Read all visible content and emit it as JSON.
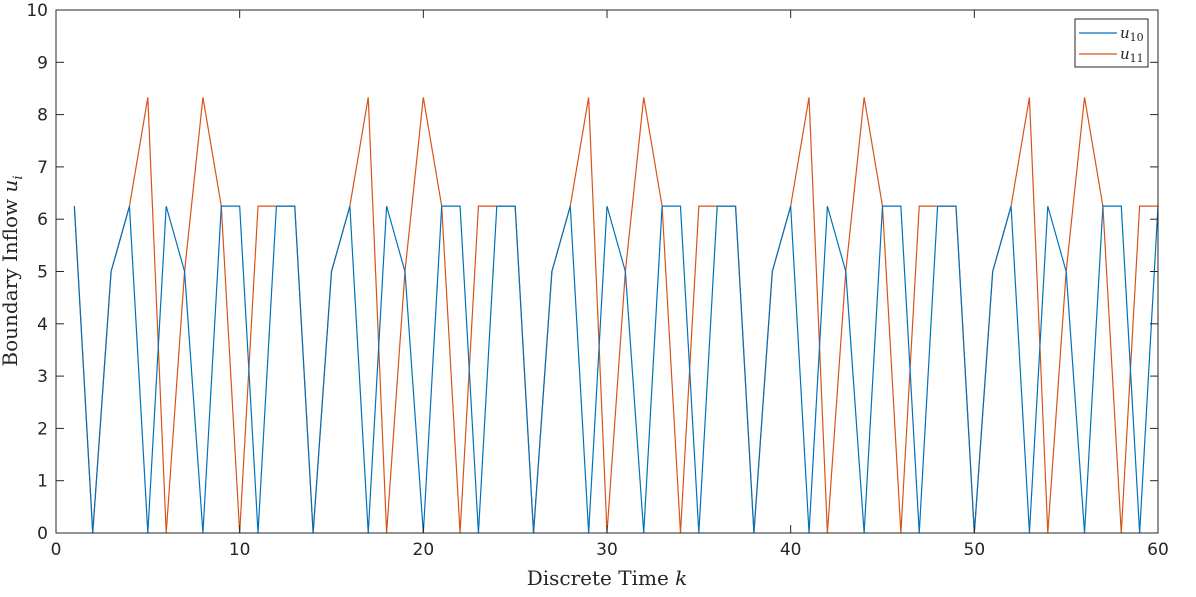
{
  "chart_data": {
    "type": "line",
    "title": "",
    "xlabel": "Discrete Time",
    "xlabel_var": "k",
    "ylabel": "Boundary Inflow",
    "ylabel_var": "u",
    "ylabel_sub": "i",
    "xlim": [
      0,
      60
    ],
    "ylim": [
      0,
      10
    ],
    "xticks": [
      0,
      10,
      20,
      30,
      40,
      50,
      60
    ],
    "yticks": [
      0,
      1,
      2,
      3,
      4,
      5,
      6,
      7,
      8,
      9,
      10
    ],
    "grid": false,
    "legend_position": "top-right",
    "x": [
      1,
      2,
      3,
      4,
      5,
      6,
      7,
      8,
      9,
      10,
      11,
      12,
      13,
      14,
      15,
      16,
      17,
      18,
      19,
      20,
      21,
      22,
      23,
      24,
      25,
      26,
      27,
      28,
      29,
      30,
      31,
      32,
      33,
      34,
      35,
      36,
      37,
      38,
      39,
      40,
      41,
      42,
      43,
      44,
      45,
      46,
      47,
      48,
      49,
      50,
      51,
      52,
      53,
      54,
      55,
      56,
      57,
      58,
      59,
      60
    ],
    "series": [
      {
        "name": "u",
        "name_sub": "10",
        "color": "#0072BD",
        "values": [
          6.25,
          0,
          5,
          6.25,
          0,
          6.25,
          5,
          0,
          6.25,
          6.25,
          0,
          6.25,
          6.25,
          0,
          5,
          6.25,
          0,
          6.25,
          5,
          0,
          6.25,
          6.25,
          0,
          6.25,
          6.25,
          0,
          5,
          6.25,
          0,
          6.25,
          5,
          0,
          6.25,
          6.25,
          0,
          6.25,
          6.25,
          0,
          5,
          6.25,
          0,
          6.25,
          5,
          0,
          6.25,
          6.25,
          0,
          6.25,
          6.25,
          0,
          5,
          6.25,
          0,
          6.25,
          5,
          0,
          6.25,
          6.25,
          0,
          6.25
        ]
      },
      {
        "name": "u",
        "name_sub": "11",
        "color": "#D95319",
        "values": [
          6.25,
          0,
          5,
          6.25,
          8.33,
          0,
          5,
          8.33,
          6.25,
          0,
          6.25,
          6.25,
          6.25,
          0,
          5,
          6.25,
          8.33,
          0,
          5,
          8.33,
          6.25,
          0,
          6.25,
          6.25,
          6.25,
          0,
          5,
          6.25,
          8.33,
          0,
          5,
          8.33,
          6.25,
          0,
          6.25,
          6.25,
          6.25,
          0,
          5,
          6.25,
          8.33,
          0,
          5,
          8.33,
          6.25,
          0,
          6.25,
          6.25,
          6.25,
          0,
          5,
          6.25,
          8.33,
          0,
          5,
          8.33,
          6.25,
          0,
          6.25,
          6.25
        ]
      }
    ]
  }
}
